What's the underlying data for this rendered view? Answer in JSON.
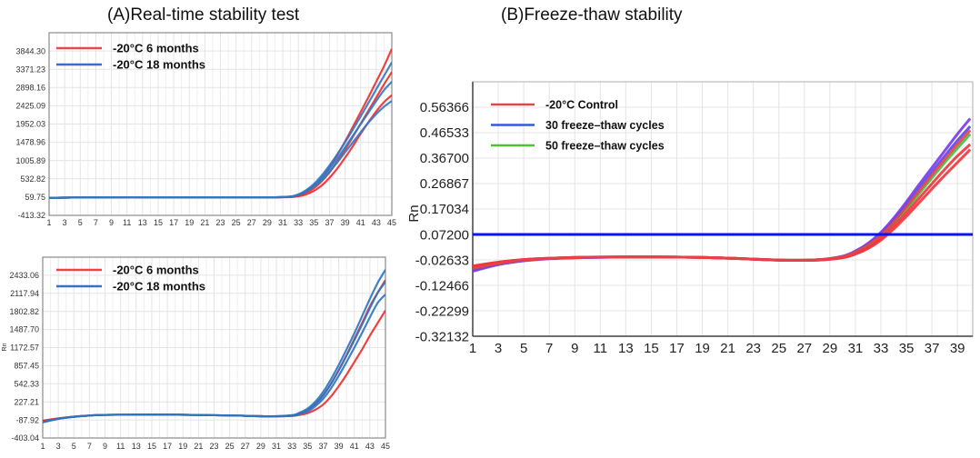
{
  "titles": {
    "a": "(A)Real-time stability test",
    "b": "(B)Freeze-thaw stability"
  },
  "chart_data": [
    {
      "type": "line",
      "panel": "A-top",
      "ylabel": "",
      "xlim": [
        1,
        45
      ],
      "ylim": [
        -413.32,
        4317.37
      ],
      "yticks": [
        "-413.32",
        "59.75",
        "532.82",
        "1005.89",
        "1478.96",
        "1952.03",
        "2425.09",
        "2898.16",
        "3371.23",
        "3844.30"
      ],
      "xticks": [
        "1",
        "3",
        "5",
        "7",
        "9",
        "11",
        "13",
        "15",
        "17",
        "19",
        "21",
        "23",
        "25",
        "27",
        "29",
        "31",
        "33",
        "35",
        "37",
        "39",
        "41",
        "43",
        "45"
      ],
      "grid": true,
      "legend": "top-left",
      "legend_entries": [
        {
          "label": "-20°C 6 months",
          "color": "#e8474c"
        },
        {
          "label": "-20°C 18 months",
          "color": "#3a6fc9"
        }
      ],
      "x": [
        1,
        5,
        10,
        15,
        20,
        25,
        30,
        32,
        33,
        34,
        35,
        36,
        37,
        38,
        39,
        40,
        41,
        42,
        43,
        44,
        45
      ],
      "series": [
        {
          "group": 0,
          "color": "#f02b2b",
          "values": [
            40,
            50,
            55,
            55,
            55,
            55,
            55,
            70,
            110,
            200,
            350,
            560,
            830,
            1150,
            1500,
            1880,
            2260,
            2650,
            3050,
            3450,
            3900
          ]
        },
        {
          "group": 0,
          "color": "#f02b2b",
          "values": [
            40,
            50,
            55,
            55,
            55,
            55,
            55,
            60,
            80,
            130,
            220,
            360,
            560,
            800,
            1080,
            1380,
            1700,
            2000,
            2280,
            2520,
            2700
          ]
        },
        {
          "group": 0,
          "color": "#f02b2b",
          "values": [
            40,
            50,
            55,
            55,
            55,
            55,
            55,
            65,
            95,
            170,
            290,
            470,
            700,
            980,
            1290,
            1620,
            1960,
            2300,
            2640,
            2980,
            3300
          ]
        },
        {
          "group": 1,
          "color": "#2f78c4",
          "values": [
            40,
            50,
            55,
            55,
            55,
            55,
            55,
            75,
            130,
            240,
            400,
            620,
            880,
            1170,
            1480,
            1810,
            2150,
            2500,
            2850,
            3200,
            3550
          ]
        },
        {
          "group": 1,
          "color": "#2f78c4",
          "values": [
            40,
            50,
            55,
            55,
            55,
            55,
            55,
            70,
            110,
            200,
            330,
            500,
            720,
            960,
            1220,
            1480,
            1740,
            1990,
            2210,
            2400,
            2550
          ]
        },
        {
          "group": 1,
          "color": "#2f78c4",
          "values": [
            40,
            50,
            55,
            55,
            55,
            55,
            55,
            72,
            120,
            220,
            365,
            560,
            800,
            1060,
            1350,
            1650,
            1950,
            2250,
            2550,
            2830,
            3050
          ]
        }
      ]
    },
    {
      "type": "line",
      "panel": "A-bottom",
      "ylabel": "Rn",
      "xlim": [
        1,
        45
      ],
      "ylim": [
        -403.04,
        2748.18
      ],
      "yticks": [
        "-403.04",
        "-87.92",
        "227.21",
        "542.33",
        "857.45",
        "1172.57",
        "1487.70",
        "1802.82",
        "2117.94",
        "2433.06"
      ],
      "xticks": [
        "1",
        "3",
        "5",
        "7",
        "9",
        "11",
        "13",
        "15",
        "17",
        "19",
        "21",
        "23",
        "25",
        "27",
        "29",
        "31",
        "33",
        "35",
        "37",
        "39",
        "41",
        "43",
        "45"
      ],
      "grid": true,
      "legend": "top-left",
      "legend_entries": [
        {
          "label": "-20°C 6 months",
          "color": "#f0424a"
        },
        {
          "label": "-20°C 18 months",
          "color": "#3a6fc9"
        }
      ],
      "x": [
        1,
        3,
        5,
        7,
        9,
        15,
        20,
        25,
        30,
        33,
        34,
        35,
        36,
        37,
        38,
        39,
        40,
        41,
        42,
        43,
        44,
        45
      ],
      "series": [
        {
          "group": 0,
          "color": "#f02b2b",
          "values": [
            -100,
            -60,
            -30,
            -10,
            0,
            5,
            0,
            -10,
            -25,
            -20,
            0,
            30,
            90,
            180,
            320,
            500,
            700,
            920,
            1140,
            1380,
            1600,
            1820
          ]
        },
        {
          "group": 0,
          "color": "#f02b2b",
          "values": [
            -110,
            -65,
            -32,
            -12,
            0,
            5,
            0,
            -10,
            -25,
            -10,
            25,
            85,
            190,
            340,
            540,
            780,
            1040,
            1320,
            1600,
            1890,
            2130,
            2350
          ]
        },
        {
          "group": 1,
          "color": "#2c74c0",
          "values": [
            -130,
            -70,
            -35,
            -12,
            0,
            5,
            0,
            -10,
            -25,
            -5,
            40,
            110,
            230,
            400,
            620,
            870,
            1140,
            1420,
            1720,
            2020,
            2300,
            2530
          ]
        },
        {
          "group": 1,
          "color": "#2c74c0",
          "values": [
            -125,
            -68,
            -33,
            -12,
            0,
            5,
            0,
            -10,
            -25,
            -15,
            15,
            60,
            150,
            280,
            460,
            680,
            920,
            1170,
            1430,
            1700,
            1950,
            2100
          ]
        },
        {
          "group": 1,
          "color": "#2c74c0",
          "values": [
            -128,
            -69,
            -34,
            -12,
            0,
            5,
            0,
            -10,
            -25,
            -10,
            28,
            85,
            190,
            340,
            540,
            775,
            1030,
            1300,
            1575,
            1860,
            2125,
            2320
          ]
        }
      ]
    },
    {
      "type": "line",
      "panel": "B",
      "ylabel": "Rn",
      "xlim": [
        1,
        40.2
      ],
      "ylim": [
        -0.32132,
        0.66199
      ],
      "yticks": [
        "-0.32132",
        "-0.22299",
        "-0.12466",
        "-0.02633",
        "0.07200",
        "0.17034",
        "0.26867",
        "0.36700",
        "0.46533",
        "0.56366"
      ],
      "xticks": [
        "1",
        "3",
        "5",
        "7",
        "9",
        "11",
        "13",
        "15",
        "17",
        "19",
        "21",
        "23",
        "25",
        "27",
        "29",
        "31",
        "33",
        "35",
        "37",
        "39"
      ],
      "grid": true,
      "legend": "top-left",
      "legend_entries": [
        {
          "label": "-20°C Control",
          "color": "#d9474f"
        },
        {
          "label": "30 freeze–thaw cycles",
          "color": "#3558e0"
        },
        {
          "label": "50 freeze–thaw cycles",
          "color": "#4cc132"
        }
      ],
      "threshold": {
        "value": 0.072,
        "color": "#0a14f5"
      },
      "x": [
        1,
        3,
        5,
        7,
        10,
        15,
        20,
        25,
        28,
        30,
        31,
        32,
        33,
        34,
        35,
        36,
        37,
        38,
        39,
        40
      ],
      "series": [
        {
          "group": 1,
          "color": "#7a35ee",
          "values": [
            -0.07,
            -0.045,
            -0.03,
            -0.022,
            -0.017,
            -0.015,
            -0.018,
            -0.027,
            -0.026,
            -0.012,
            0.008,
            0.038,
            0.08,
            0.135,
            0.198,
            0.265,
            0.33,
            0.395,
            0.46,
            0.52
          ]
        },
        {
          "group": 1,
          "color": "#5a48e8",
          "values": [
            -0.065,
            -0.042,
            -0.028,
            -0.021,
            -0.017,
            -0.015,
            -0.018,
            -0.027,
            -0.026,
            -0.013,
            0.005,
            0.034,
            0.074,
            0.126,
            0.186,
            0.25,
            0.313,
            0.375,
            0.435,
            0.49
          ]
        },
        {
          "group": 2,
          "color": "#3fbf3a",
          "values": [
            -0.055,
            -0.038,
            -0.026,
            -0.02,
            -0.016,
            -0.015,
            -0.018,
            -0.027,
            -0.026,
            -0.015,
            0.002,
            0.028,
            0.066,
            0.115,
            0.17,
            0.23,
            0.29,
            0.35,
            0.405,
            0.46
          ]
        },
        {
          "group": 0,
          "color": "#f0333b",
          "values": [
            -0.05,
            -0.035,
            -0.025,
            -0.02,
            -0.016,
            -0.015,
            -0.018,
            -0.027,
            -0.027,
            -0.017,
            -0.002,
            0.022,
            0.058,
            0.104,
            0.156,
            0.212,
            0.268,
            0.323,
            0.375,
            0.42
          ]
        },
        {
          "group": 0,
          "color": "#f0333b",
          "values": [
            -0.052,
            -0.036,
            -0.025,
            -0.02,
            -0.016,
            -0.015,
            -0.018,
            -0.027,
            -0.027,
            -0.018,
            -0.004,
            0.018,
            0.05,
            0.093,
            0.142,
            0.195,
            0.248,
            0.3,
            0.35,
            0.4
          ]
        },
        {
          "group": 0,
          "color": "#e8404a",
          "values": [
            -0.06,
            -0.04,
            -0.027,
            -0.021,
            -0.016,
            -0.015,
            -0.018,
            -0.027,
            -0.026,
            -0.014,
            0.004,
            0.031,
            0.07,
            0.12,
            0.178,
            0.24,
            0.302,
            0.362,
            0.42,
            0.475
          ]
        }
      ]
    }
  ]
}
